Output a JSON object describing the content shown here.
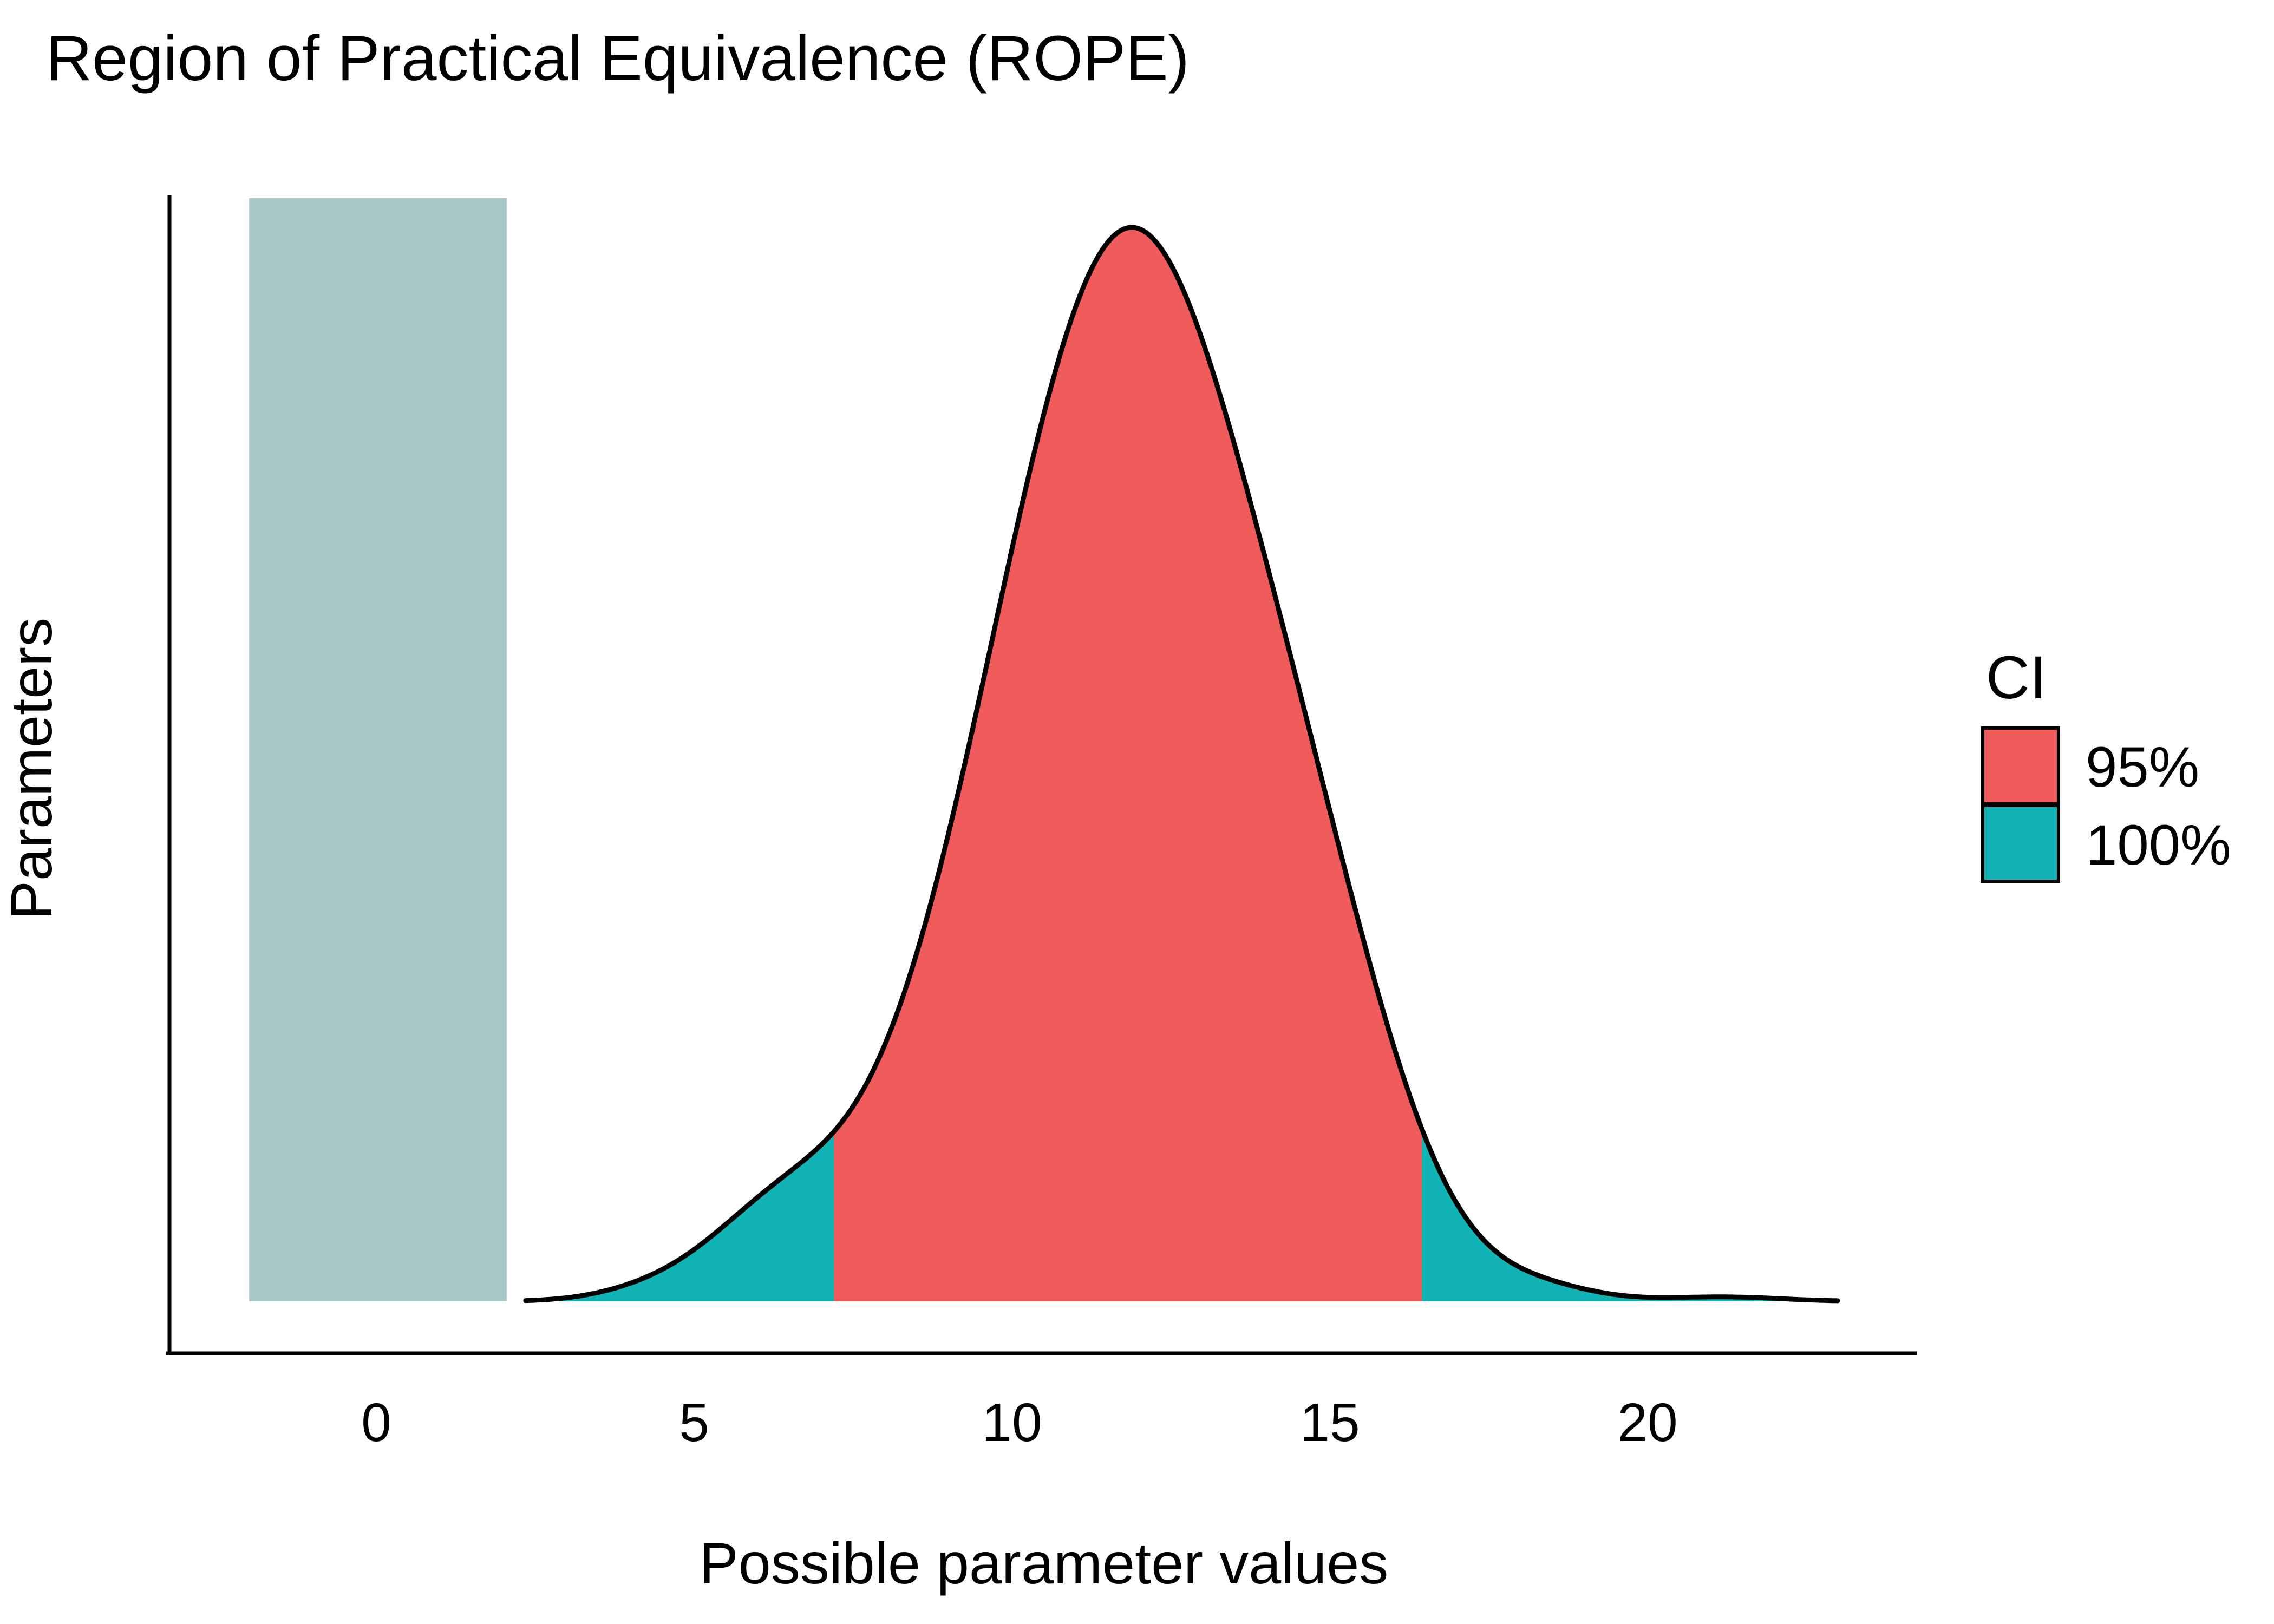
{
  "title": "Region of Practical Equivalence (ROPE)",
  "chart_data": {
    "type": "area",
    "title": "Region of Practical Equivalence (ROPE)",
    "xlabel": "Possible parameter values",
    "ylabel": "Parameters",
    "x_ticks": [
      "0",
      "5",
      "10",
      "15",
      "20"
    ],
    "x_tick_values": [
      0,
      5,
      10,
      15,
      20
    ],
    "xlim": [
      -3.25,
      24.2
    ],
    "grid": false,
    "background_color": "#ffffff",
    "axis_color": "#000000",
    "text_color": "#000000",
    "rope": {
      "label": "ROPE region bar",
      "min": -2.0,
      "max": 2.05,
      "color": "#A8C6C7"
    },
    "density": {
      "description": "Posterior density curve (KDE), black outline",
      "x_start": 2.35,
      "x_end": 23.0,
      "peak_x": 11.85,
      "outline_color": "#000000",
      "mixture": [
        {
          "a": 1.0,
          "mu": 11.85,
          "sigma": 2.2
        },
        {
          "a": 0.1,
          "mu": 15.0,
          "sigma": 1.2
        },
        {
          "a": 0.07,
          "mu": 6.3,
          "sigma": 1.15
        },
        {
          "a": 0.006,
          "mu": 4.2,
          "sigma": 0.8
        },
        {
          "a": 0.008,
          "mu": 18.4,
          "sigma": 0.8
        },
        {
          "a": 0.004,
          "mu": 21.2,
          "sigma": 0.9
        }
      ]
    },
    "ci": {
      "title": "CI",
      "levels": [
        {
          "label": "95%",
          "color": "#F05C5C",
          "range": [
            7.2,
            16.45
          ]
        },
        {
          "label": "100%",
          "color": "#12B3B4",
          "range": [
            2.35,
            23.0
          ]
        }
      ]
    },
    "legend_position": "right"
  }
}
